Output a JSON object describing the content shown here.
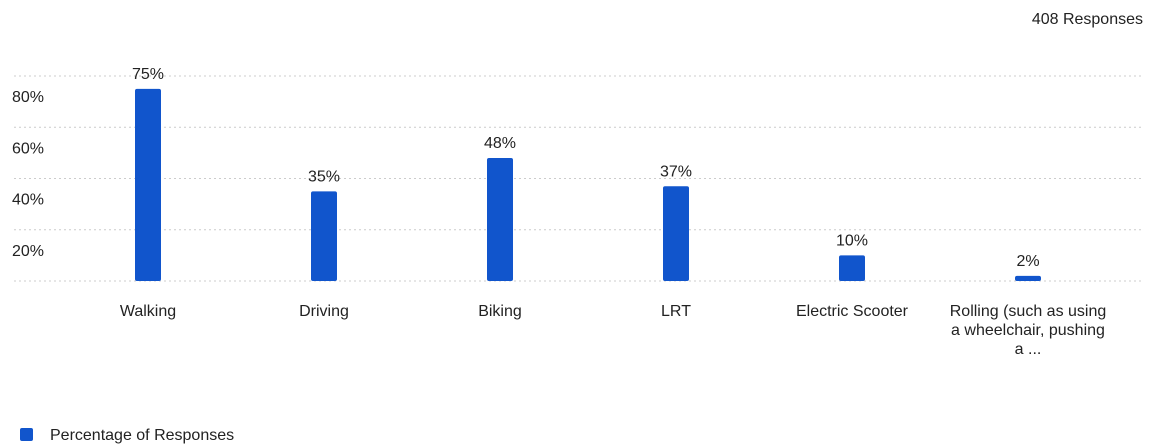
{
  "chart_data": {
    "type": "bar",
    "subtitle": "408 Responses",
    "categories": [
      "Walking",
      "Driving",
      "Biking",
      "LRT",
      "Electric Scooter",
      "Rolling (such as using a wheelchair, pushing a ..."
    ],
    "series": [
      {
        "name": "Percentage of Responses",
        "color": "#1155cc",
        "values": [
          75,
          35,
          48,
          37,
          10,
          2
        ],
        "value_labels": [
          "75%",
          "35%",
          "48%",
          "37%",
          "10%",
          "2%"
        ]
      }
    ],
    "ylim": [
      0,
      80
    ],
    "yticks": [
      {
        "value": 20,
        "label": "20%"
      },
      {
        "value": 40,
        "label": "40%"
      },
      {
        "value": 60,
        "label": "60%"
      },
      {
        "value": 80,
        "label": "80%"
      }
    ],
    "grid": true,
    "legend": "bottom-left"
  }
}
